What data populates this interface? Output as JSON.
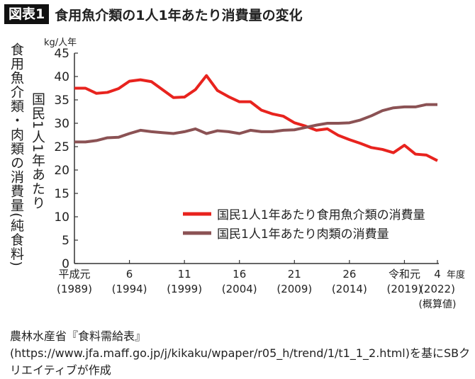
{
  "header": {
    "badge": "図表1",
    "title": "食用魚介類の1人1年あたり消費量の変化"
  },
  "y_label_outer": "食用魚介類・肉類の消費量(純食料)",
  "y_label_inner": "国民1人1年あたり",
  "source": "農林水産省『食料需給表』(https://www.jfa.maff.go.jp/j/kikaku/wpaper/r05_h/trend/1/t1_1_2.html)を基にSBクリエイティブが作成",
  "chart_data": {
    "type": "line",
    "unit": "kg/人年",
    "ylim": [
      0,
      45
    ],
    "yticks": [
      0,
      5,
      10,
      15,
      20,
      25,
      30,
      35,
      40,
      45
    ],
    "x": [
      1989,
      1990,
      1991,
      1992,
      1993,
      1994,
      1995,
      1996,
      1997,
      1998,
      1999,
      2000,
      2001,
      2002,
      2003,
      2004,
      2005,
      2006,
      2007,
      2008,
      2009,
      2010,
      2011,
      2012,
      2013,
      2014,
      2015,
      2016,
      2017,
      2018,
      2019,
      2020,
      2021,
      2022
    ],
    "xticks": [
      {
        "year": 1989,
        "label": "平成元",
        "sub": "(1989)"
      },
      {
        "year": 1994,
        "label": "6",
        "sub": "(1994)"
      },
      {
        "year": 1999,
        "label": "11",
        "sub": "(1999)"
      },
      {
        "year": 2004,
        "label": "16",
        "sub": "(2004)"
      },
      {
        "year": 2009,
        "label": "21",
        "sub": "(2009)"
      },
      {
        "year": 2014,
        "label": "26",
        "sub": "(2014)"
      },
      {
        "year": 2019,
        "label": "令和元",
        "sub": "(2019)"
      },
      {
        "year": 2022,
        "label": "4",
        "sub": "(2022)",
        "note": "(概算値)"
      }
    ],
    "xlabel": "年度",
    "legend": "center-right",
    "series": [
      {
        "name": "国民1人1年あたり食用魚介類の消費量",
        "color": "#e8231e",
        "values": [
          37.5,
          37.5,
          36.4,
          36.6,
          37.4,
          39.0,
          39.3,
          38.9,
          37.2,
          35.5,
          35.6,
          37.2,
          40.2,
          37.0,
          35.7,
          34.6,
          34.6,
          32.8,
          32.0,
          31.5,
          30.1,
          29.4,
          28.5,
          28.8,
          27.4,
          26.5,
          25.7,
          24.8,
          24.4,
          23.7,
          25.3,
          23.4,
          23.2,
          22.0
        ]
      },
      {
        "name": "国民1人1年あたり肉類の消費量",
        "color": "#8b5254",
        "values": [
          26.0,
          26.0,
          26.3,
          26.9,
          27.0,
          27.8,
          28.5,
          28.2,
          28.0,
          27.8,
          28.2,
          28.8,
          27.8,
          28.4,
          28.2,
          27.8,
          28.5,
          28.2,
          28.2,
          28.5,
          28.6,
          29.1,
          29.6,
          30.0,
          30.0,
          30.1,
          30.7,
          31.6,
          32.7,
          33.3,
          33.5,
          33.5,
          34.0,
          34.0
        ]
      }
    ]
  }
}
